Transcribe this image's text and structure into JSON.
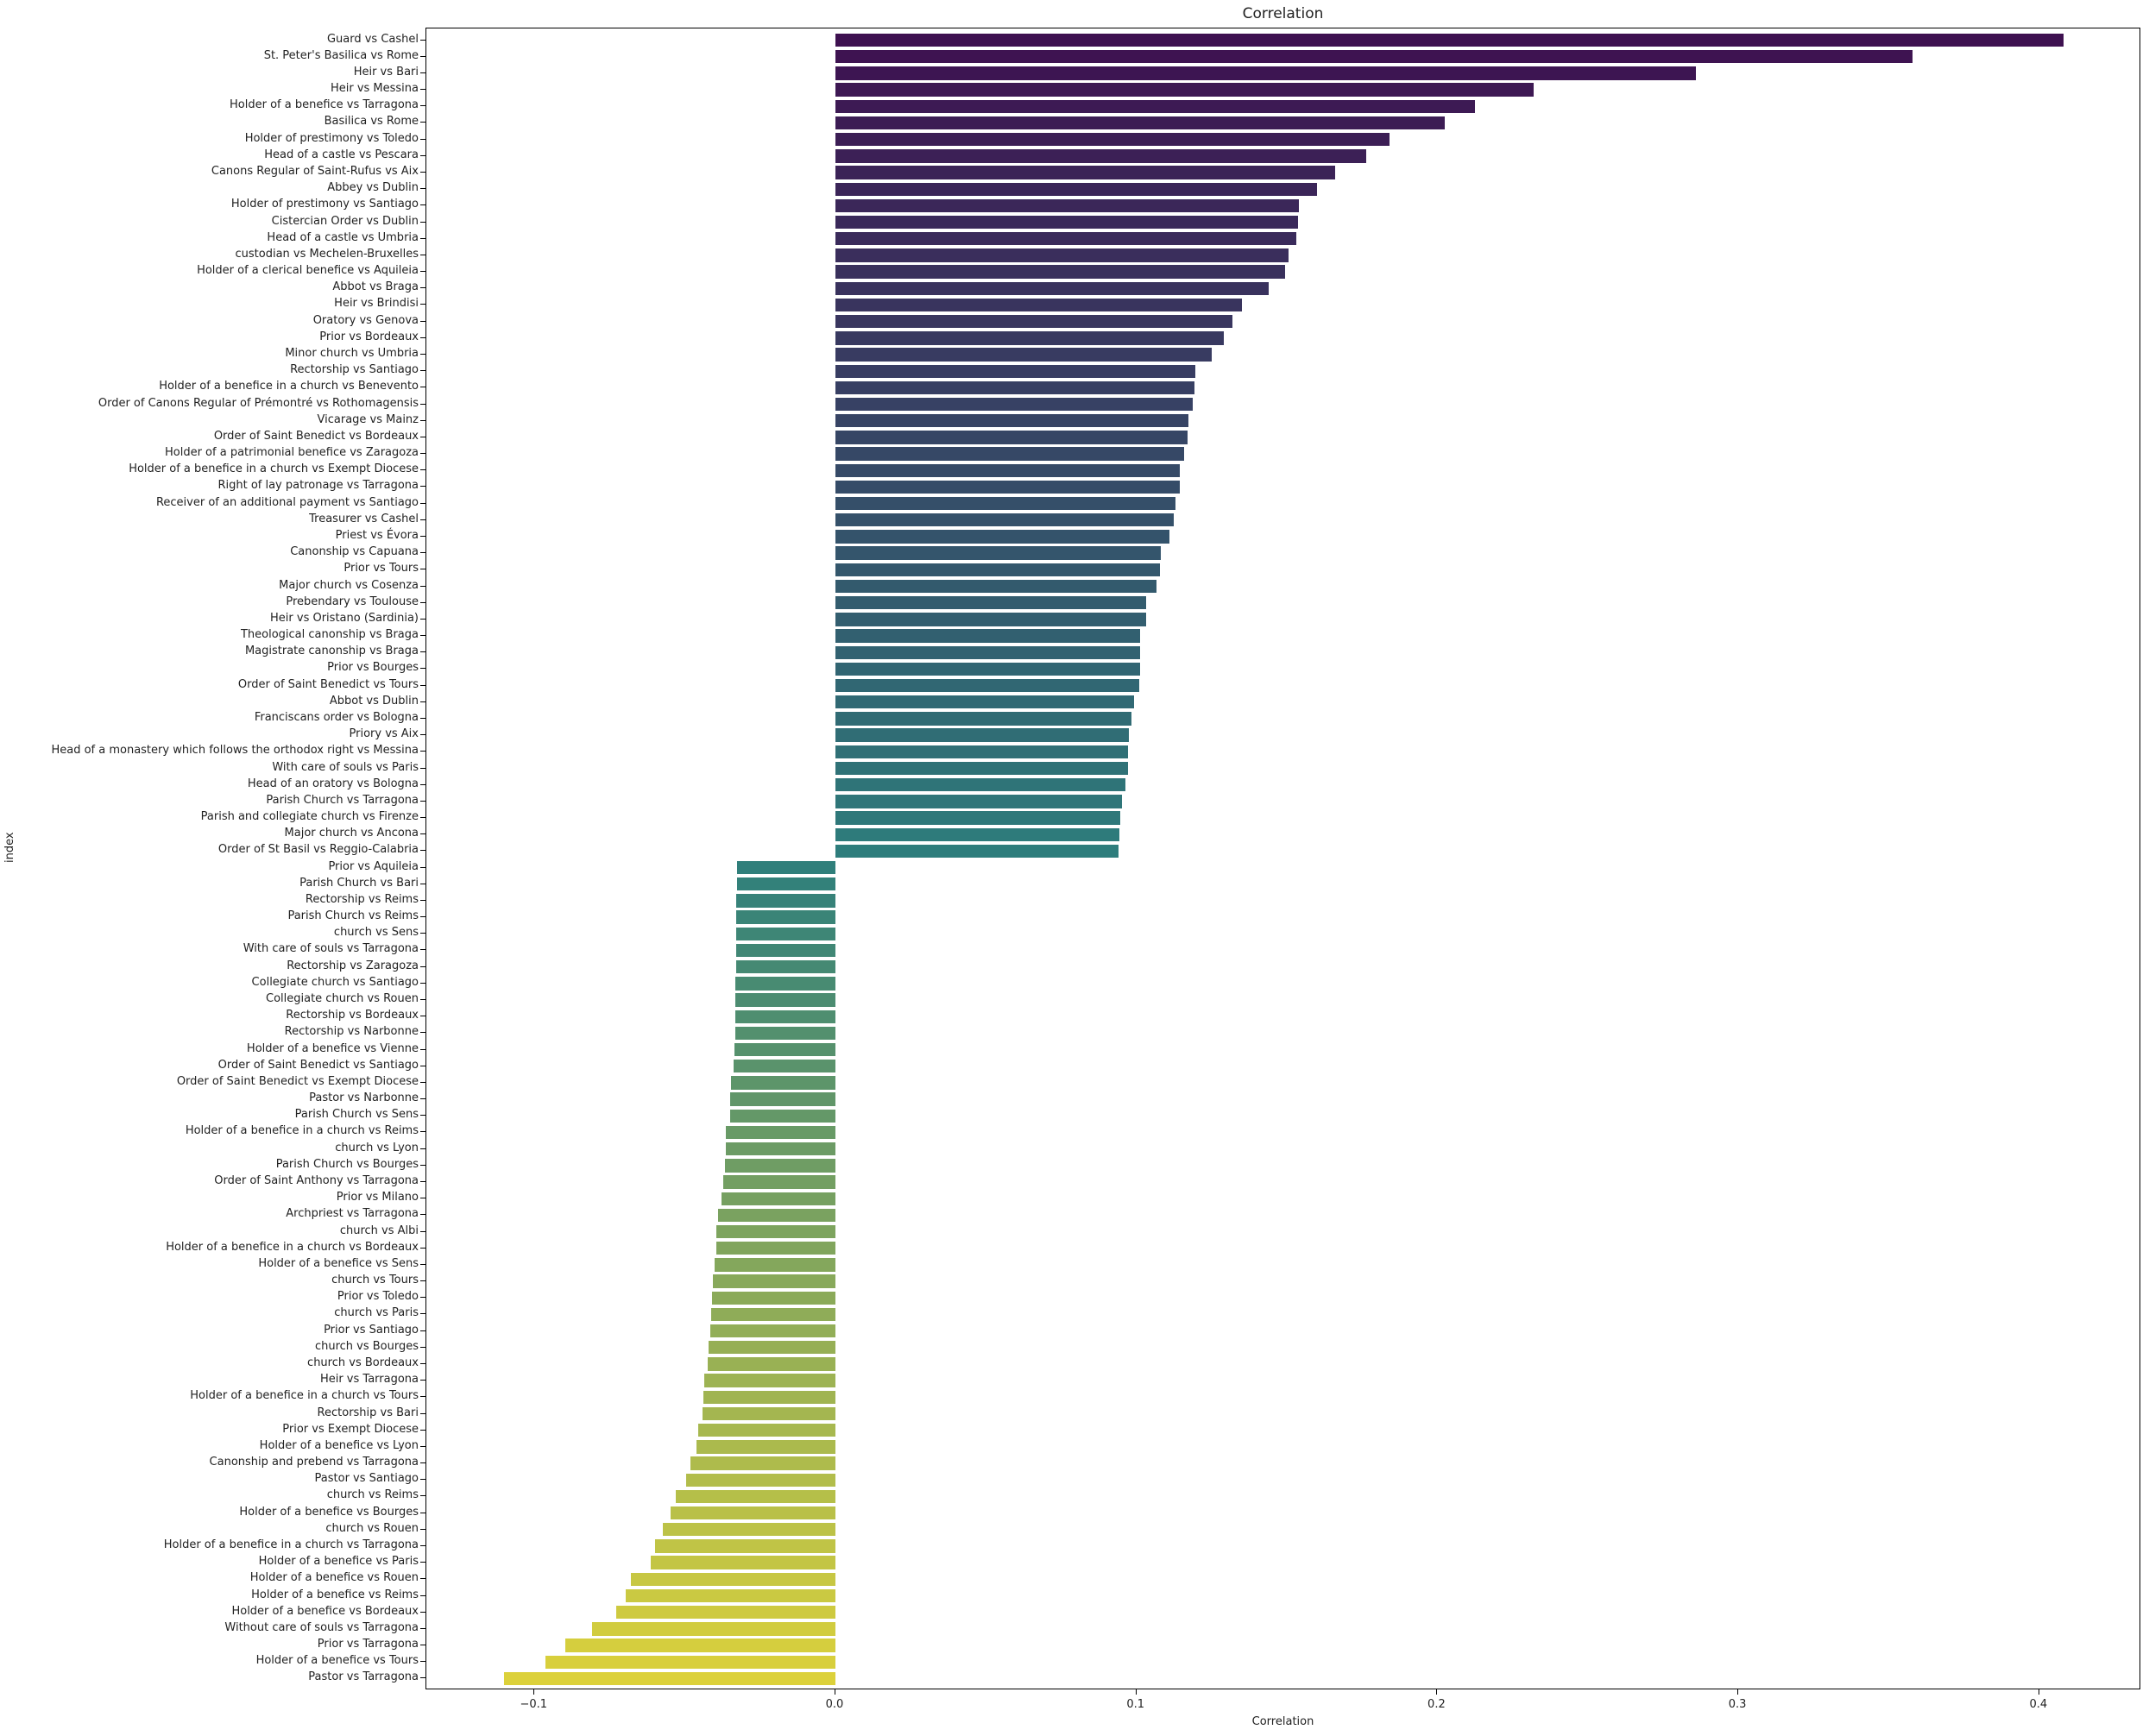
{
  "chart_data": {
    "type": "bar",
    "orientation": "horizontal",
    "title": "Correlation",
    "xlabel": "Correlation",
    "ylabel": "index",
    "xlim": [
      -0.137,
      0.433
    ],
    "xticks": [
      -0.1,
      0.0,
      0.1,
      0.2,
      0.3,
      0.4
    ],
    "xtick_labels": [
      "−0.1",
      "0.0",
      "0.1",
      "0.2",
      "0.3",
      "0.4"
    ],
    "grid": false,
    "legend": null,
    "palette": "viridis",
    "color_start": "#3e1150",
    "color_mid": "#2e7e7c",
    "color_end": "#dcd13b",
    "categories": [
      "Guard vs Cashel",
      "St. Peter's Basilica vs Rome",
      "Heir vs Bari",
      "Heir vs Messina",
      "Holder of a benefice vs Tarragona",
      "Basilica vs Rome",
      "Holder of prestimony vs Toledo",
      "Head of a castle vs Pescara",
      "Canons Regular of Saint-Rufus vs Aix",
      "Abbey vs Dublin",
      "Holder of prestimony vs Santiago",
      "Cistercian Order vs Dublin",
      "Head of a castle vs Umbria",
      "custodian vs Mechelen-Bruxelles",
      "Holder of a clerical benefice vs Aquileia",
      "Abbot vs Braga",
      "Heir vs Brindisi",
      "Oratory vs Genova",
      "Prior vs Bordeaux",
      "Minor church vs Umbria",
      "Rectorship vs Santiago",
      "Holder of a benefice in a church vs Benevento",
      "Order of Canons Regular of Prémontré vs Rothomagensis",
      "Vicarage vs Mainz",
      "Order of Saint Benedict vs Bordeaux",
      "Holder of a patrimonial benefice vs Zaragoza",
      "Holder of a benefice in a church vs Exempt Diocese",
      "Right of lay patronage vs Tarragona",
      "Receiver of an additional payment vs Santiago",
      "Treasurer vs Cashel",
      "Priest vs Évora",
      "Canonship vs Capuana",
      "Prior vs Tours",
      "Major church vs Cosenza",
      "Prebendary vs Toulouse",
      "Heir vs Oristano (Sardinia)",
      "Theological canonship vs Braga",
      "Magistrate canonship vs Braga",
      "Prior vs Bourges",
      "Order of Saint Benedict vs Tours",
      "Abbot vs Dublin",
      "Franciscans order vs Bologna",
      "Priory vs Aix",
      "Head of a monastery which follows the orthodox right vs Messina",
      "With care of souls vs Paris",
      "Head of an oratory vs Bologna",
      "Parish Church vs Tarragona",
      "Parish and collegiate church vs Firenze",
      "Major church vs Ancona",
      "Order of St Basil vs Reggio-Calabria",
      "Prior vs Aquileia",
      "Parish Church vs Bari",
      "Rectorship vs Reims",
      "Parish Church vs Reims",
      "church vs Sens",
      "With care of souls vs Tarragona",
      "Rectorship vs Zaragoza",
      "Collegiate church vs Santiago",
      "Collegiate church vs Rouen",
      "Rectorship vs Bordeaux",
      "Rectorship vs Narbonne",
      "Holder of a benefice vs Vienne",
      "Order of Saint Benedict vs Santiago",
      "Order of Saint Benedict vs Exempt Diocese",
      "Pastor vs Narbonne",
      "Parish Church vs Sens",
      "Holder of a benefice in a church vs Reims",
      "church vs Lyon",
      "Parish Church vs Bourges",
      "Order of Saint Anthony vs Tarragona",
      "Prior vs Milano",
      "Archpriest vs Tarragona",
      "church vs Albi",
      "Holder of a benefice in a church vs Bordeaux",
      "Holder of a benefice vs Sens",
      "church vs Tours",
      "Prior vs Toledo",
      "church vs Paris",
      "Prior vs Santiago",
      "church vs Bourges",
      "church vs Bordeaux",
      "Heir vs Tarragona",
      "Holder of a benefice in a church vs Tours",
      "Rectorship vs Bari",
      "Prior vs Exempt Diocese",
      "Holder of a benefice vs Lyon",
      "Canonship and prebend vs Tarragona",
      "Pastor vs Santiago",
      "church vs Reims",
      "Holder of a benefice vs Bourges",
      "church vs Rouen",
      "Holder of a benefice in a church vs Tarragona",
      "Holder of a benefice vs Paris",
      "Holder of a benefice vs Rouen",
      "Holder of a benefice vs Reims",
      "Holder of a benefice vs Bordeaux",
      "Without care of souls vs Tarragona",
      "Prior vs Tarragona",
      "Holder of a benefice vs Tours",
      "Pastor vs Tarragona"
    ],
    "values": [
      0.408,
      0.358,
      0.286,
      0.232,
      0.2125,
      0.2025,
      0.184,
      0.1765,
      0.166,
      0.16,
      0.154,
      0.1537,
      0.153,
      0.1506,
      0.1494,
      0.144,
      0.135,
      0.132,
      0.129,
      0.125,
      0.1196,
      0.1193,
      0.1187,
      0.1173,
      0.117,
      0.1159,
      0.1144,
      0.1144,
      0.113,
      0.1124,
      0.111,
      0.108,
      0.1078,
      0.1067,
      0.1032,
      0.1032,
      0.1012,
      0.1012,
      0.1012,
      0.101,
      0.0992,
      0.0984,
      0.0975,
      0.0972,
      0.0972,
      0.0964,
      0.0952,
      0.0946,
      0.0943,
      0.094,
      -0.0327,
      -0.0327,
      -0.033,
      -0.033,
      -0.033,
      -0.033,
      -0.033,
      -0.0333,
      -0.0333,
      -0.0333,
      -0.0333,
      -0.0336,
      -0.0339,
      -0.0348,
      -0.035,
      -0.035,
      -0.0365,
      -0.0365,
      -0.0368,
      -0.0373,
      -0.0379,
      -0.039,
      -0.0396,
      -0.0396,
      -0.0402,
      -0.0408,
      -0.041,
      -0.0413,
      -0.0416,
      -0.0422,
      -0.0424,
      -0.0436,
      -0.0439,
      -0.0442,
      -0.0456,
      -0.0462,
      -0.0482,
      -0.0496,
      -0.053,
      -0.0548,
      -0.0574,
      -0.06,
      -0.0614,
      -0.068,
      -0.0697,
      -0.0728,
      -0.081,
      -0.0898,
      -0.0964,
      -0.11
    ]
  }
}
